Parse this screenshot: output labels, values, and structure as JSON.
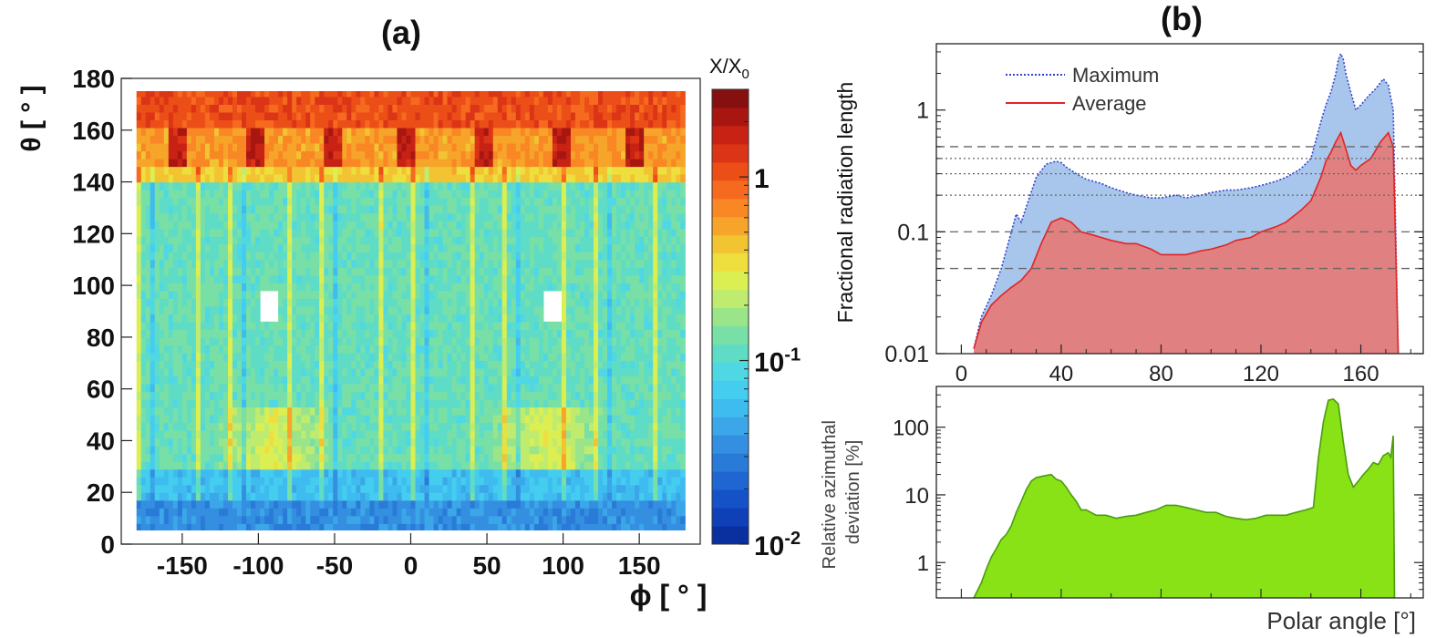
{
  "chart_data": [
    {
      "panel_label": "(a)",
      "type": "heatmap",
      "xlabel": "ϕ [ ° ]",
      "ylabel": "θ [ ° ]",
      "xlim": [
        -190,
        190
      ],
      "ylim": [
        0,
        180
      ],
      "x_ticks": [
        -150,
        -100,
        -50,
        0,
        50,
        100,
        150
      ],
      "y_ticks": [
        0,
        20,
        40,
        60,
        80,
        100,
        120,
        140,
        160,
        180
      ],
      "data_extent": {
        "phi": [
          -180,
          180
        ],
        "theta": [
          5,
          175
        ]
      },
      "colorbar": {
        "title": "X/X",
        "title_sub": "0",
        "scale": "log",
        "range": [
          0.01,
          3
        ],
        "tick_labels": [
          {
            "value": 1,
            "base": "1",
            "exp": ""
          },
          {
            "value": 0.1,
            "base": "10",
            "exp": "-1"
          },
          {
            "value": 0.01,
            "base": "10",
            "exp": "-2"
          }
        ],
        "colors": [
          "#0a2f9e",
          "#1040b8",
          "#1552c8",
          "#1f66d2",
          "#2a7ad8",
          "#348fe0",
          "#3ba6e8",
          "#3fbcef",
          "#45cdf0",
          "#4fd8e3",
          "#5fdcc6",
          "#78e0a6",
          "#9ae58a",
          "#bfec6e",
          "#dcef52",
          "#eedf3e",
          "#f2c432",
          "#f6a52a",
          "#f88724",
          "#f56a1e",
          "#ec4e18",
          "#dc3416",
          "#c72214",
          "#a81612",
          "#861010"
        ]
      },
      "holes": [
        {
          "phi": [
            -98,
            -87
          ],
          "theta": [
            86,
            97
          ]
        },
        {
          "phi": [
            88,
            99
          ],
          "theta": [
            86,
            97
          ]
        }
      ]
    },
    {
      "panel_label": "(b)",
      "type": "area",
      "ylabel": "Fractional radiation length",
      "yscale": "log",
      "xlim": [
        -10,
        185
      ],
      "ylim": [
        0.01,
        3.5
      ],
      "x_ticks": [
        0,
        40,
        80,
        120,
        160
      ],
      "y_tick_labels": [
        {
          "value": 1,
          "label": "1"
        },
        {
          "value": 0.1,
          "label": "0.1"
        },
        {
          "value": 0.01,
          "label": "0.01"
        }
      ],
      "reference_lines": {
        "dashed": [
          0.5,
          0.1,
          0.05
        ],
        "dotted": [
          0.4,
          0.3,
          0.2
        ]
      },
      "legend": {
        "position": "top-left"
      },
      "series": [
        {
          "name": "Maximum",
          "style": "dotted",
          "line_color": "#3344cc",
          "fill_color": "#a8c6ec",
          "x": [
            5,
            8,
            12,
            16,
            20,
            22,
            24,
            26,
            30,
            34,
            38,
            40,
            42,
            46,
            50,
            56,
            60,
            66,
            70,
            76,
            80,
            86,
            90,
            96,
            100,
            106,
            110,
            116,
            120,
            126,
            130,
            136,
            140,
            144,
            146,
            148,
            150,
            151,
            152,
            153,
            154,
            156,
            158,
            160,
            163,
            166,
            169,
            171,
            173,
            175
          ],
          "y": [
            0.011,
            0.02,
            0.03,
            0.05,
            0.1,
            0.14,
            0.12,
            0.16,
            0.28,
            0.36,
            0.38,
            0.37,
            0.34,
            0.3,
            0.27,
            0.25,
            0.23,
            0.21,
            0.2,
            0.19,
            0.19,
            0.2,
            0.19,
            0.2,
            0.21,
            0.22,
            0.22,
            0.23,
            0.24,
            0.26,
            0.28,
            0.33,
            0.4,
            0.8,
            1.1,
            1.4,
            2.0,
            2.6,
            2.9,
            2.6,
            2.0,
            1.4,
            1.0,
            1.1,
            1.3,
            1.5,
            1.8,
            1.6,
            1.0,
            0.01
          ]
        },
        {
          "name": "Average",
          "style": "solid",
          "line_color": "#e02525",
          "fill_color": "#e08080",
          "x": [
            5,
            8,
            12,
            16,
            20,
            24,
            28,
            32,
            36,
            40,
            44,
            48,
            52,
            56,
            60,
            66,
            70,
            76,
            80,
            86,
            90,
            96,
            100,
            106,
            110,
            116,
            120,
            126,
            130,
            136,
            140,
            144,
            146,
            148,
            150,
            152,
            154,
            156,
            158,
            160,
            164,
            168,
            171,
            173,
            175
          ],
          "y": [
            0.011,
            0.018,
            0.025,
            0.03,
            0.035,
            0.04,
            0.05,
            0.08,
            0.12,
            0.13,
            0.12,
            0.1,
            0.095,
            0.09,
            0.085,
            0.08,
            0.08,
            0.072,
            0.065,
            0.065,
            0.065,
            0.07,
            0.072,
            0.078,
            0.085,
            0.09,
            0.1,
            0.11,
            0.12,
            0.15,
            0.18,
            0.28,
            0.38,
            0.45,
            0.55,
            0.65,
            0.48,
            0.35,
            0.32,
            0.35,
            0.4,
            0.55,
            0.65,
            0.5,
            0.01
          ]
        }
      ]
    },
    {
      "type": "area",
      "ylabel": "Relative azimuthal deviation [%]",
      "xlabel": "Polar angle [°]",
      "yscale": "log",
      "xlim": [
        -10,
        185
      ],
      "ylim": [
        0.3,
        400
      ],
      "y_tick_labels": [
        {
          "value": 100,
          "label": "100"
        },
        {
          "value": 10,
          "label": "10"
        },
        {
          "value": 1,
          "label": "1"
        }
      ],
      "series": [
        {
          "name": "deviation",
          "line_color": "#4a9c10",
          "fill_color": "#88e215",
          "x": [
            5,
            8,
            10,
            12,
            14,
            16,
            18,
            20,
            22,
            24,
            26,
            28,
            30,
            33,
            36,
            38,
            40,
            42,
            44,
            46,
            48,
            50,
            54,
            58,
            62,
            66,
            70,
            74,
            78,
            82,
            86,
            90,
            94,
            98,
            102,
            106,
            110,
            114,
            118,
            122,
            126,
            130,
            134,
            138,
            141,
            143,
            145,
            147,
            149,
            151,
            153,
            155,
            157,
            159,
            161,
            163,
            165,
            167,
            169,
            171,
            172,
            173,
            173.5
          ],
          "y": [
            0.3,
            0.5,
            0.8,
            1.2,
            1.6,
            2.2,
            2.6,
            3.5,
            5.5,
            8,
            12,
            16,
            18,
            19,
            20,
            17,
            16,
            13,
            10,
            8,
            6,
            6,
            5,
            5,
            4.5,
            4.8,
            5,
            5.5,
            6,
            7,
            7,
            6.5,
            6,
            5.5,
            5.5,
            4.8,
            4.5,
            4.3,
            4.5,
            5,
            5,
            5,
            5.5,
            6,
            6.5,
            35,
            120,
            250,
            260,
            220,
            60,
            20,
            13,
            16,
            20,
            24,
            30,
            28,
            38,
            42,
            36,
            75,
            0.3
          ]
        }
      ]
    }
  ]
}
